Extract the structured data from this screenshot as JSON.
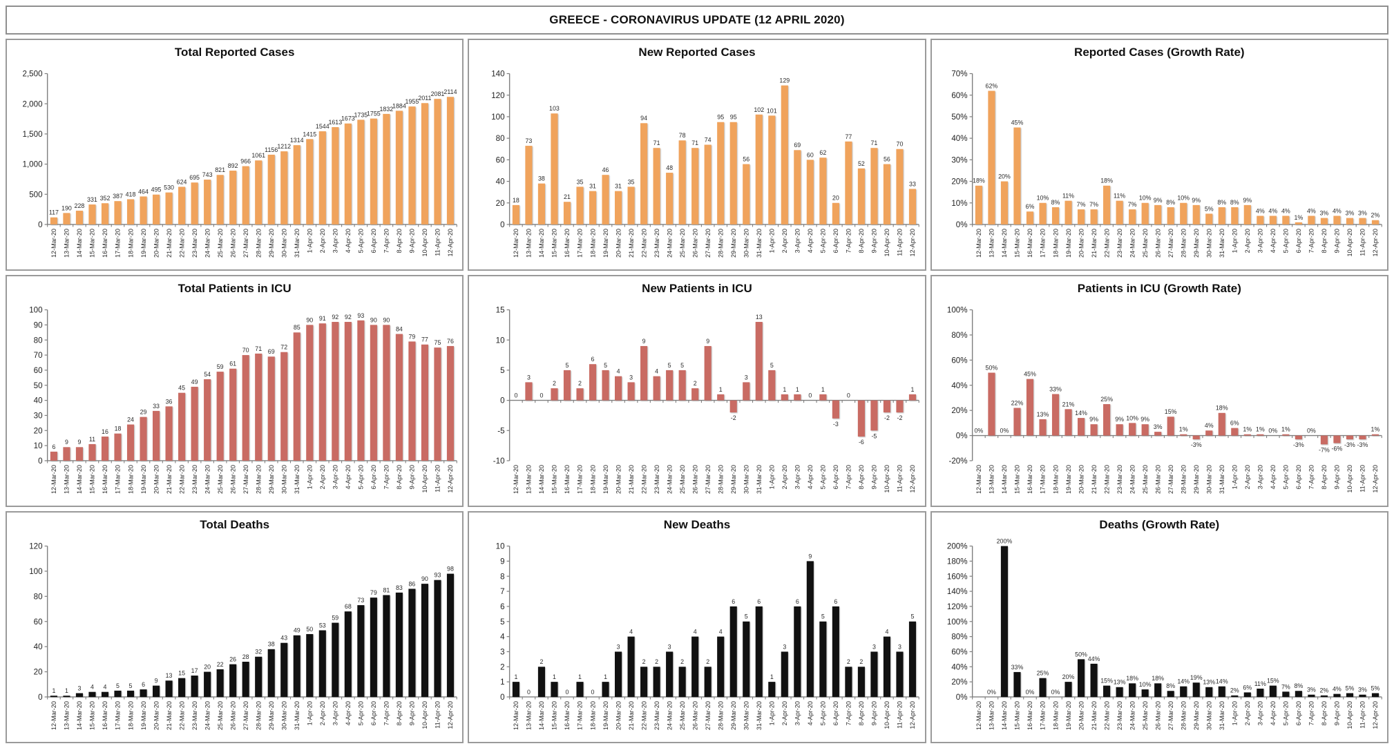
{
  "page_title": "GREECE - CORONAVIRUS UPDATE (12 APRIL 2020)",
  "colors": {
    "cases": "#F0A35C",
    "icu": "#C96B63",
    "deaths": "#111111",
    "axis": "#7f7f7f",
    "label": "#2b2b2b"
  },
  "dates": [
    "12-Mar-20",
    "13-Mar-20",
    "14-Mar-20",
    "15-Mar-20",
    "16-Mar-20",
    "17-Mar-20",
    "18-Mar-20",
    "19-Mar-20",
    "20-Mar-20",
    "21-Mar-20",
    "22-Mar-20",
    "23-Mar-20",
    "24-Mar-20",
    "25-Mar-20",
    "26-Mar-20",
    "27-Mar-20",
    "28-Mar-20",
    "29-Mar-20",
    "30-Mar-20",
    "31-Mar-20",
    "1-Apr-20",
    "2-Apr-20",
    "3-Apr-20",
    "4-Apr-20",
    "5-Apr-20",
    "6-Apr-20",
    "7-Apr-20",
    "8-Apr-20",
    "9-Apr-20",
    "10-Apr-20",
    "11-Apr-20",
    "12-Apr-20"
  ],
  "chart_data": [
    {
      "type": "bar",
      "title": "Total Reported Cases",
      "color_key": "cases",
      "ylim": [
        0,
        2500
      ],
      "ystep": 500,
      "yformat": "comma",
      "grid": false,
      "legend": "none",
      "values": [
        117,
        190,
        228,
        331,
        352,
        387,
        418,
        464,
        495,
        530,
        624,
        695,
        743,
        821,
        892,
        966,
        1061,
        1156,
        1212,
        1314,
        1415,
        1544,
        1613,
        1673,
        1735,
        1755,
        1832,
        1884,
        1955,
        2011,
        2081,
        2114
      ],
      "labels": [
        "117",
        "190",
        "228",
        "331",
        "352",
        "387",
        "418",
        "464",
        "495",
        "530",
        "624",
        "695",
        "743",
        "821",
        "892",
        "966",
        "1061",
        "1156",
        "1212",
        "1314",
        "1415",
        "1544",
        "1613",
        "1673",
        "1735",
        "1755",
        "1832",
        "1884",
        "1955",
        "2011",
        "2081",
        "2114"
      ]
    },
    {
      "type": "bar",
      "title": "New Reported Cases",
      "color_key": "cases",
      "ylim": [
        0,
        140
      ],
      "ystep": 20,
      "yformat": "plain",
      "grid": false,
      "legend": "none",
      "values": [
        18,
        73,
        38,
        103,
        21,
        35,
        31,
        46,
        31,
        35,
        94,
        71,
        48,
        78,
        71,
        74,
        95,
        95,
        56,
        102,
        101,
        129,
        69,
        60,
        62,
        20,
        77,
        52,
        71,
        56,
        70,
        33
      ],
      "labels": [
        "18",
        "73",
        "38",
        "103",
        "21",
        "35",
        "31",
        "46",
        "31",
        "35",
        "94",
        "71",
        "48",
        "78",
        "71",
        "74",
        "95",
        "95",
        "56",
        "102",
        "101",
        "129",
        "69",
        "60",
        "62",
        "20",
        "77",
        "52",
        "71",
        "56",
        "70",
        "33"
      ]
    },
    {
      "type": "bar",
      "title": "Reported Cases (Growth Rate)",
      "color_key": "cases",
      "ylim": [
        0,
        70
      ],
      "ystep": 10,
      "yformat": "percent",
      "grid": false,
      "legend": "none",
      "values": [
        18,
        62,
        20,
        45,
        6,
        10,
        8,
        11,
        7,
        7,
        18,
        11,
        7,
        10,
        9,
        8,
        10,
        9,
        5,
        8,
        8,
        9,
        4,
        4,
        4,
        1,
        4,
        3,
        4,
        3,
        3,
        2
      ],
      "labels": [
        "18%",
        "62%",
        "20%",
        "45%",
        "6%",
        "10%",
        "8%",
        "11%",
        "7%",
        "7%",
        "18%",
        "11%",
        "7%",
        "10%",
        "9%",
        "8%",
        "10%",
        "9%",
        "5%",
        "8%",
        "8%",
        "9%",
        "4%",
        "4%",
        "4%",
        "1%",
        "4%",
        "3%",
        "4%",
        "3%",
        "3%",
        "2%"
      ]
    },
    {
      "type": "bar",
      "title": "Total Patients in ICU",
      "color_key": "icu",
      "ylim": [
        0,
        100
      ],
      "ystep": 10,
      "yformat": "plain",
      "grid": false,
      "legend": "none",
      "values": [
        6,
        9,
        9,
        11,
        16,
        18,
        24,
        29,
        33,
        36,
        45,
        49,
        54,
        59,
        61,
        70,
        71,
        69,
        72,
        85,
        90,
        91,
        92,
        92,
        93,
        90,
        90,
        84,
        79,
        77,
        75,
        76
      ],
      "labels": [
        "6",
        "9",
        "9",
        "11",
        "16",
        "18",
        "24",
        "29",
        "33",
        "36",
        "45",
        "49",
        "54",
        "59",
        "61",
        "70",
        "71",
        "69",
        "72",
        "85",
        "90",
        "91",
        "92",
        "92",
        "93",
        "90",
        "90",
        "84",
        "79",
        "77",
        "75",
        "76"
      ]
    },
    {
      "type": "bar",
      "title": "New Patients in ICU",
      "color_key": "icu",
      "ylim": [
        -10,
        15
      ],
      "ystep": 5,
      "yformat": "plain",
      "grid": false,
      "legend": "none",
      "values": [
        0,
        3,
        0,
        2,
        5,
        2,
        6,
        5,
        4,
        3,
        9,
        4,
        5,
        5,
        2,
        9,
        1,
        -2,
        3,
        13,
        5,
        1,
        1,
        0,
        1,
        -3,
        0,
        -6,
        -5,
        -2,
        -2,
        1
      ],
      "labels": [
        "0",
        "3",
        "0",
        "2",
        "5",
        "2",
        "6",
        "5",
        "4",
        "3",
        "9",
        "4",
        "5",
        "5",
        "2",
        "9",
        "1",
        "-2",
        "3",
        "13",
        "5",
        "1",
        "1",
        "0",
        "1",
        "-3",
        "0",
        "-6",
        "-5",
        "-2",
        "-2",
        "1"
      ]
    },
    {
      "type": "bar",
      "title": "Patients in ICU (Growth Rate)",
      "color_key": "icu",
      "ylim": [
        -20,
        100
      ],
      "ystep": 20,
      "yformat": "percent",
      "grid": false,
      "legend": "none",
      "values": [
        0,
        50,
        0,
        22,
        45,
        13,
        33,
        21,
        14,
        9,
        25,
        9,
        10,
        9,
        3,
        15,
        1,
        -3,
        4,
        18,
        6,
        1,
        1,
        0,
        1,
        -3,
        0,
        -7,
        -6,
        -3,
        -3,
        1
      ],
      "labels": [
        "0%",
        "50%",
        "0%",
        "22%",
        "45%",
        "13%",
        "33%",
        "21%",
        "14%",
        "9%",
        "25%",
        "9%",
        "10%",
        "9%",
        "3%",
        "15%",
        "1%",
        "-3%",
        "4%",
        "18%",
        "6%",
        "1%",
        "1%",
        "0%",
        "1%",
        "-3%",
        "0%",
        "-7%",
        "-6%",
        "-3%",
        "-3%",
        "1%"
      ]
    },
    {
      "type": "bar",
      "title": "Total Deaths",
      "color_key": "deaths",
      "ylim": [
        0,
        120
      ],
      "ystep": 20,
      "yformat": "plain",
      "grid": false,
      "legend": "none",
      "values": [
        1,
        1,
        3,
        4,
        4,
        5,
        5,
        6,
        9,
        13,
        15,
        17,
        20,
        22,
        26,
        28,
        32,
        38,
        43,
        49,
        50,
        53,
        59,
        68,
        73,
        79,
        81,
        83,
        86,
        90,
        93,
        98
      ],
      "labels": [
        "1",
        "1",
        "3",
        "4",
        "4",
        "5",
        "5",
        "6",
        "9",
        "13",
        "15",
        "17",
        "20",
        "22",
        "26",
        "28",
        "32",
        "38",
        "43",
        "49",
        "50",
        "53",
        "59",
        "68",
        "73",
        "79",
        "81",
        "83",
        "86",
        "90",
        "93",
        "98"
      ]
    },
    {
      "type": "bar",
      "title": "New Deaths",
      "color_key": "deaths",
      "ylim": [
        0,
        10
      ],
      "ystep": 1,
      "yformat": "plain",
      "grid": false,
      "legend": "none",
      "values": [
        1,
        0,
        2,
        1,
        0,
        1,
        0,
        1,
        3,
        4,
        2,
        2,
        3,
        2,
        4,
        2,
        4,
        6,
        5,
        6,
        1,
        3,
        6,
        9,
        5,
        6,
        2,
        2,
        3,
        4,
        3,
        5
      ],
      "labels": [
        "1",
        "0",
        "2",
        "1",
        "0",
        "1",
        "0",
        "1",
        "3",
        "4",
        "2",
        "2",
        "3",
        "2",
        "4",
        "2",
        "4",
        "6",
        "5",
        "6",
        "1",
        "3",
        "6",
        "9",
        "5",
        "6",
        "2",
        "2",
        "3",
        "4",
        "3",
        "5"
      ]
    },
    {
      "type": "bar",
      "title": "Deaths (Growth Rate)",
      "color_key": "deaths",
      "ylim": [
        0,
        200
      ],
      "ystep": 20,
      "yformat": "percent",
      "grid": false,
      "legend": "none",
      "values": [
        0,
        0,
        200,
        33,
        0,
        25,
        0,
        20,
        50,
        44,
        15,
        13,
        18,
        10,
        18,
        8,
        14,
        19,
        13,
        14,
        2,
        6,
        11,
        15,
        7,
        8,
        3,
        2,
        4,
        5,
        3,
        5
      ],
      "labels": [
        "",
        "0%",
        "200%",
        "33%",
        "0%",
        "25%",
        "0%",
        "20%",
        "50%",
        "44%",
        "15%",
        "13%",
        "18%",
        "10%",
        "18%",
        "8%",
        "14%",
        "19%",
        "13%",
        "14%",
        "2%",
        "6%",
        "11%",
        "15%",
        "7%",
        "8%",
        "3%",
        "2%",
        "4%",
        "5%",
        "3%",
        "5%"
      ]
    }
  ]
}
